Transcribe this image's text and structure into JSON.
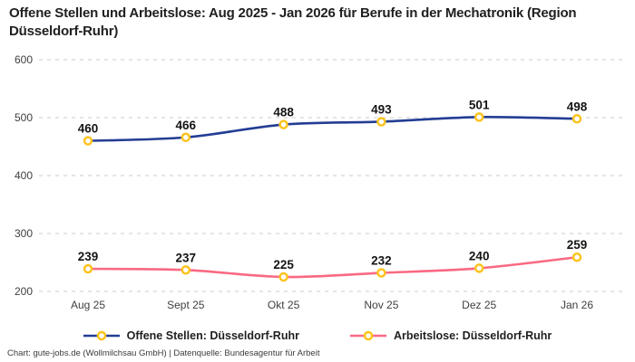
{
  "header": {
    "title": "Offene Stellen und Arbeitslose: Aug 2025 - Jan 2026 für Berufe in der Mechatronik (Region Düsseldorf-Ruhr)"
  },
  "chart_data": {
    "type": "line",
    "title": "Offene Stellen und Arbeitslose: Aug 2025 - Jan 2026 für Berufe in der Mechatronik (Region Düsseldorf-Ruhr)",
    "categories": [
      "Aug 25",
      "Sept 25",
      "Okt 25",
      "Nov 25",
      "Dez 25",
      "Jan 26"
    ],
    "series": [
      {
        "name": "Offene Stellen: Düsseldorf-Ruhr",
        "color": "#233d94",
        "values": [
          460,
          466,
          488,
          493,
          501,
          498
        ]
      },
      {
        "name": "Arbeitslose: Düsseldorf-Ruhr",
        "color": "#f96982",
        "values": [
          239,
          237,
          225,
          232,
          240,
          259
        ]
      }
    ],
    "marker": {
      "ring_color": "#fcc31e",
      "fill_color": "#ffffff"
    },
    "xlabel": "",
    "ylabel": "",
    "ylim": [
      200,
      600
    ],
    "yticks": [
      200,
      300,
      400,
      500,
      600
    ],
    "grid": "horizontal-dashed",
    "legend_position": "bottom",
    "data_labels": true
  },
  "footer": {
    "text": "Chart: gute-jobs.de (Wollmilchsau GmbH) | Datenquelle: Bundesagentur für Arbeit"
  }
}
